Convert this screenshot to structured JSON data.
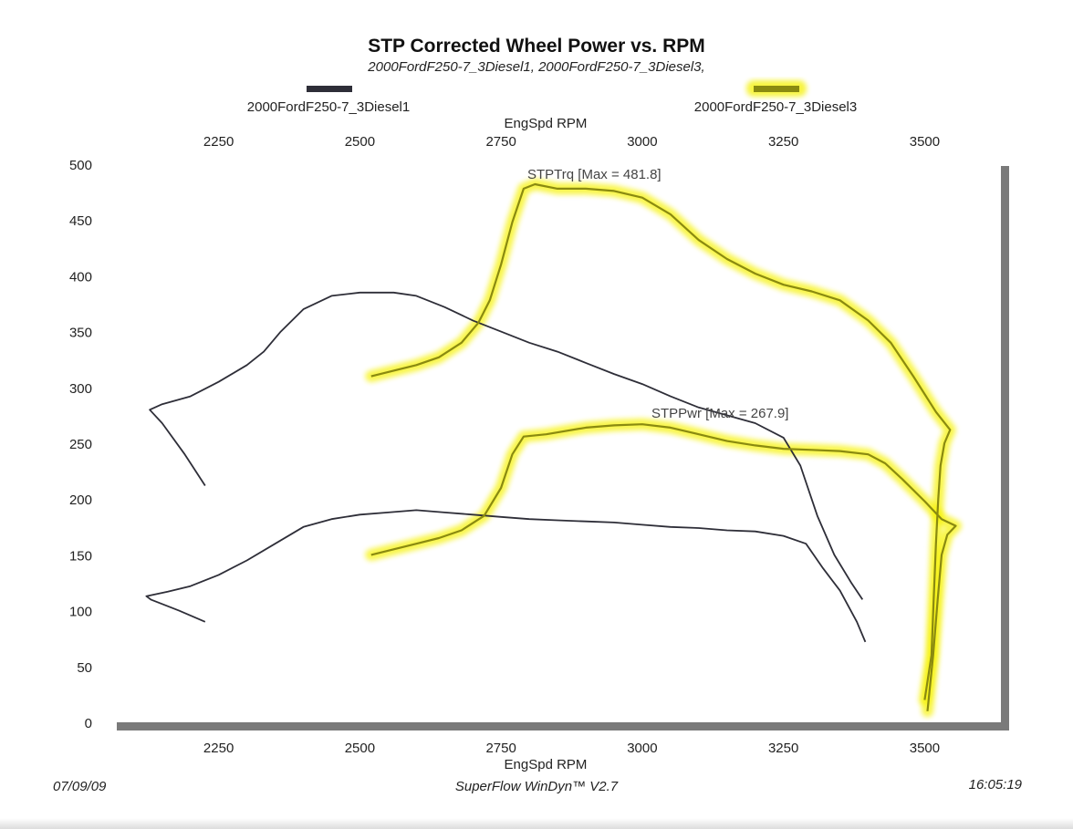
{
  "chart_data": {
    "type": "line",
    "title": "STP Corrected Wheel Power vs. RPM",
    "subtitle": "2000FordF250-7_3Diesel1, 2000FordF250-7_3Diesel3,",
    "xlabel_top": "EngSpd  RPM",
    "xlabel": "EngSpd  RPM",
    "ylabel": "",
    "x_ticks": [
      2250,
      2500,
      2750,
      3000,
      3250,
      3500
    ],
    "y_ticks": [
      0,
      50,
      100,
      150,
      200,
      250,
      300,
      350,
      400,
      450,
      500
    ],
    "xlim": [
      2060,
      3635
    ],
    "ylim": [
      0,
      500
    ],
    "legend": [
      {
        "name": "2000FordF250-7_3Diesel1",
        "color": "#2e2e38",
        "style": "plain"
      },
      {
        "name": "2000FordF250-7_3Diesel3",
        "color": "#8a8a10",
        "style": "highlighted"
      }
    ],
    "annotations": {
      "torque": "STPTrq [Max = 481.8]",
      "power": "STPPwr [Max = 267.9]"
    },
    "series": [
      {
        "legend": "2000FordF250-7_3Diesel1",
        "measure": "STPTrq",
        "points": [
          [
            2226,
            212
          ],
          [
            2190,
            240
          ],
          [
            2150,
            268
          ],
          [
            2128,
            280
          ],
          [
            2150,
            285
          ],
          [
            2200,
            292
          ],
          [
            2250,
            305
          ],
          [
            2300,
            320
          ],
          [
            2330,
            332
          ],
          [
            2360,
            350
          ],
          [
            2400,
            370
          ],
          [
            2450,
            382
          ],
          [
            2500,
            385
          ],
          [
            2560,
            385
          ],
          [
            2600,
            382
          ],
          [
            2650,
            372
          ],
          [
            2700,
            360
          ],
          [
            2750,
            350
          ],
          [
            2800,
            340
          ],
          [
            2850,
            332
          ],
          [
            2900,
            322
          ],
          [
            2950,
            312
          ],
          [
            3000,
            303
          ],
          [
            3050,
            292
          ],
          [
            3100,
            282
          ],
          [
            3150,
            275
          ],
          [
            3200,
            268
          ],
          [
            3250,
            255
          ],
          [
            3280,
            230
          ],
          [
            3310,
            185
          ],
          [
            3340,
            150
          ],
          [
            3370,
            125
          ],
          [
            3390,
            110
          ]
        ]
      },
      {
        "legend": "2000FordF250-7_3Diesel1",
        "measure": "STPPwr",
        "points": [
          [
            2226,
            90
          ],
          [
            2180,
            100
          ],
          [
            2130,
            110
          ],
          [
            2122,
            113
          ],
          [
            2160,
            117
          ],
          [
            2200,
            122
          ],
          [
            2250,
            132
          ],
          [
            2300,
            145
          ],
          [
            2350,
            160
          ],
          [
            2400,
            175
          ],
          [
            2450,
            182
          ],
          [
            2500,
            186
          ],
          [
            2550,
            188
          ],
          [
            2600,
            190
          ],
          [
            2650,
            188
          ],
          [
            2700,
            186
          ],
          [
            2750,
            184
          ],
          [
            2800,
            182
          ],
          [
            2850,
            181
          ],
          [
            2900,
            180
          ],
          [
            2950,
            179
          ],
          [
            3000,
            177
          ],
          [
            3050,
            175
          ],
          [
            3100,
            174
          ],
          [
            3150,
            172
          ],
          [
            3200,
            171
          ],
          [
            3250,
            167
          ],
          [
            3290,
            160
          ],
          [
            3320,
            138
          ],
          [
            3350,
            118
          ],
          [
            3380,
            90
          ],
          [
            3395,
            72
          ]
        ]
      },
      {
        "legend": "2000FordF250-7_3Diesel3",
        "measure": "STPTrq",
        "points": [
          [
            2520,
            310
          ],
          [
            2560,
            315
          ],
          [
            2600,
            320
          ],
          [
            2640,
            327
          ],
          [
            2680,
            340
          ],
          [
            2710,
            358
          ],
          [
            2730,
            378
          ],
          [
            2750,
            410
          ],
          [
            2770,
            448
          ],
          [
            2790,
            478
          ],
          [
            2810,
            482
          ],
          [
            2850,
            478
          ],
          [
            2900,
            478
          ],
          [
            2950,
            476
          ],
          [
            3000,
            470
          ],
          [
            3050,
            455
          ],
          [
            3100,
            432
          ],
          [
            3150,
            415
          ],
          [
            3200,
            402
          ],
          [
            3250,
            392
          ],
          [
            3300,
            386
          ],
          [
            3350,
            378
          ],
          [
            3400,
            360
          ],
          [
            3440,
            340
          ],
          [
            3480,
            310
          ],
          [
            3520,
            278
          ],
          [
            3545,
            262
          ],
          [
            3535,
            250
          ],
          [
            3528,
            230
          ],
          [
            3524,
            200
          ],
          [
            3520,
            160
          ],
          [
            3516,
            110
          ],
          [
            3512,
            60
          ],
          [
            3500,
            20
          ]
        ]
      },
      {
        "legend": "2000FordF250-7_3Diesel3",
        "measure": "STPPwr",
        "points": [
          [
            2520,
            150
          ],
          [
            2560,
            155
          ],
          [
            2600,
            160
          ],
          [
            2640,
            165
          ],
          [
            2680,
            172
          ],
          [
            2720,
            185
          ],
          [
            2750,
            210
          ],
          [
            2770,
            240
          ],
          [
            2790,
            256
          ],
          [
            2830,
            258
          ],
          [
            2900,
            264
          ],
          [
            2950,
            266
          ],
          [
            3000,
            267
          ],
          [
            3050,
            264
          ],
          [
            3100,
            258
          ],
          [
            3150,
            252
          ],
          [
            3200,
            248
          ],
          [
            3250,
            245
          ],
          [
            3300,
            244
          ],
          [
            3350,
            243
          ],
          [
            3400,
            240
          ],
          [
            3430,
            232
          ],
          [
            3460,
            218
          ],
          [
            3500,
            198
          ],
          [
            3530,
            182
          ],
          [
            3555,
            176
          ],
          [
            3540,
            168
          ],
          [
            3530,
            150
          ],
          [
            3523,
            110
          ],
          [
            3515,
            60
          ],
          [
            3505,
            10
          ]
        ]
      }
    ]
  },
  "footer": {
    "date": "07/09/09",
    "software": "SuperFlow WinDyn™ V2.7",
    "time": "16:05:19"
  }
}
